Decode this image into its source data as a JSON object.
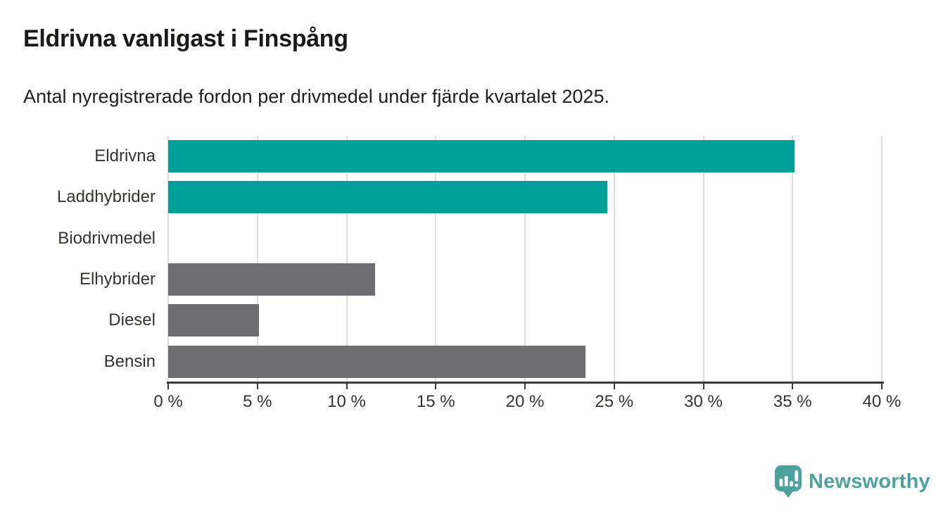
{
  "title": "Eldrivna vanligast i Finspång",
  "subtitle": "Antal nyregistrerade fordon per drivmedel under fjärde kvartalet 2025.",
  "colors": {
    "accent_teal": "#00a099",
    "neutral_gray": "#6d6d72",
    "axis": "#3a3a38",
    "gridline": "#dedede",
    "text": "#33332f",
    "logo_teal": "#4ca29c"
  },
  "chart_data": {
    "type": "bar",
    "orientation": "horizontal",
    "title": "Eldrivna vanligast i Finspång",
    "subtitle": "Antal nyregistrerade fordon per drivmedel under fjärde kvartalet 2025.",
    "categories": [
      "Eldrivna",
      "Laddhybrider",
      "Biodrivmedel",
      "Elhybrider",
      "Diesel",
      "Bensin"
    ],
    "values": [
      35.1,
      24.6,
      0,
      11.6,
      5.1,
      23.4
    ],
    "unit": "%",
    "bar_colors": [
      "#00a099",
      "#00a099",
      "#6d6d72",
      "#6d6d72",
      "#6d6d72",
      "#6d6d72"
    ],
    "xlim": [
      0,
      40
    ],
    "x_ticks": [
      0,
      5,
      10,
      15,
      20,
      25,
      30,
      35,
      40
    ],
    "x_tick_labels": [
      "0 %",
      "5 %",
      "10 %",
      "15 %",
      "20 %",
      "25 %",
      "30 %",
      "35 %",
      "40 %"
    ],
    "grid": true,
    "legend": false
  },
  "branding": {
    "logo_text": "Newsworthy",
    "logo_icon": "newsworthy-bar-chart-bubble-icon"
  }
}
